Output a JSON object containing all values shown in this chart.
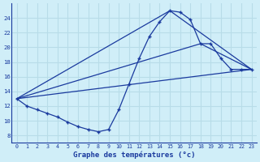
{
  "title": "Graphe des températures (°c)",
  "bg_color": "#d0eef8",
  "line_color": "#1a3a9e",
  "xlim": [
    -0.5,
    23.5
  ],
  "ylim": [
    7,
    26
  ],
  "xticks": [
    0,
    1,
    2,
    3,
    4,
    5,
    6,
    7,
    8,
    9,
    10,
    11,
    12,
    13,
    14,
    15,
    16,
    17,
    18,
    19,
    20,
    21,
    22,
    23
  ],
  "yticks": [
    8,
    10,
    12,
    14,
    16,
    18,
    20,
    22,
    24
  ],
  "grid_color": "#b8dce8",
  "series": [
    {
      "x": [
        0,
        1,
        2,
        3,
        4,
        5,
        6,
        7,
        8,
        9,
        10,
        11,
        12,
        13,
        14,
        15,
        16,
        17,
        18,
        19,
        20,
        21,
        22,
        23
      ],
      "y": [
        13.0,
        12.0,
        11.5,
        11.0,
        10.5,
        9.8,
        9.2,
        8.8,
        8.5,
        8.8,
        11.5,
        15.0,
        18.5,
        21.5,
        23.5,
        25.0,
        24.8,
        23.8,
        20.5,
        20.5,
        18.5,
        17.0,
        17.0,
        17.0
      ]
    },
    {
      "x": [
        0,
        15,
        23
      ],
      "y": [
        13.0,
        25.0,
        17.0
      ]
    },
    {
      "x": [
        0,
        18,
        23
      ],
      "y": [
        13.0,
        20.5,
        17.0
      ]
    },
    {
      "x": [
        0,
        23
      ],
      "y": [
        13.0,
        17.0
      ]
    }
  ]
}
